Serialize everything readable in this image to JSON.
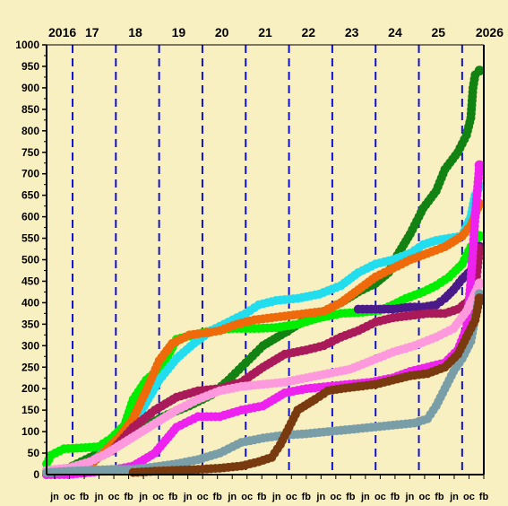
{
  "chart_data": {
    "type": "line",
    "title": "",
    "xlabel": "",
    "ylabel": "",
    "ylim": [
      0,
      1000
    ],
    "yticks": [
      0,
      50,
      100,
      150,
      200,
      250,
      300,
      350,
      400,
      450,
      500,
      550,
      600,
      650,
      700,
      750,
      800,
      850,
      900,
      950,
      1000
    ],
    "xlim": [
      2016.0,
      2026.1
    ],
    "year_labels": [
      {
        "x": 2016.0,
        "label": "2016"
      },
      {
        "x": 2017.05,
        "label": "17"
      },
      {
        "x": 2018.05,
        "label": "18"
      },
      {
        "x": 2019.05,
        "label": "19"
      },
      {
        "x": 2020.05,
        "label": "20"
      },
      {
        "x": 2021.05,
        "label": "21"
      },
      {
        "x": 2022.05,
        "label": "22"
      },
      {
        "x": 2023.05,
        "label": "23"
      },
      {
        "x": 2024.05,
        "label": "24"
      },
      {
        "x": 2025.05,
        "label": "25"
      },
      {
        "x": 2026.0,
        "label": "2026"
      }
    ],
    "year_boundaries": [
      2016.6,
      2017.6,
      2018.6,
      2019.6,
      2020.6,
      2021.6,
      2022.6,
      2023.6,
      2024.6,
      2025.6
    ],
    "month_labels": [
      "jn",
      "oc",
      "fb",
      "jn",
      "oc",
      "fb",
      "jn",
      "oc",
      "fb",
      "jn",
      "oc",
      "fb",
      "jn",
      "oc",
      "fb",
      "jn",
      "oc",
      "fb",
      "jn",
      "oc",
      "fb",
      "jn",
      "oc",
      "fb",
      "jn",
      "oc",
      "fb",
      "jn",
      "oc",
      "fb"
    ],
    "grid": false,
    "legend": "none",
    "series": [
      {
        "color": "#128212",
        "x": [
          2016.0,
          2016.3,
          2016.6,
          2017.0,
          2017.5,
          2018.0,
          2018.4,
          2018.8,
          2019.3,
          2019.8,
          2020.2,
          2020.6,
          2021.0,
          2021.5,
          2021.9,
          2022.4,
          2022.8,
          2023.2,
          2023.6,
          2023.9,
          2024.1,
          2024.4,
          2024.7,
          2025.0,
          2025.2,
          2025.5,
          2025.7,
          2025.8,
          2025.85,
          2025.9,
          2026.0
        ],
        "y": [
          5,
          5,
          20,
          40,
          65,
          95,
          120,
          140,
          160,
          185,
          220,
          260,
          300,
          330,
          355,
          380,
          400,
          425,
          445,
          470,
          510,
          560,
          620,
          660,
          710,
          750,
          790,
          830,
          900,
          930,
          940
        ]
      },
      {
        "color": "#00ee00",
        "x": [
          2016.0,
          2016.1,
          2016.4,
          2016.8,
          2017.2,
          2017.5,
          2017.8,
          2018.0,
          2018.3,
          2018.7,
          2019.0,
          2019.4,
          2019.8,
          2020.3,
          2020.8,
          2021.3,
          2021.8,
          2022.3,
          2022.8,
          2023.3,
          2023.7,
          2024.0,
          2024.3,
          2024.7,
          2025.0,
          2025.3,
          2025.6,
          2025.8,
          2026.0
        ],
        "y": [
          25,
          45,
          60,
          62,
          65,
          85,
          115,
          175,
          220,
          255,
          315,
          325,
          335,
          340,
          340,
          342,
          350,
          365,
          375,
          378,
          382,
          395,
          410,
          425,
          440,
          460,
          490,
          530,
          555
        ]
      },
      {
        "color": "#22ddee",
        "x": [
          2016.0,
          2016.5,
          2017.0,
          2017.4,
          2017.8,
          2018.2,
          2018.6,
          2019.0,
          2019.4,
          2019.8,
          2020.2,
          2020.6,
          2020.9,
          2021.3,
          2021.8,
          2022.3,
          2022.8,
          2023.2,
          2023.6,
          2024.0,
          2024.4,
          2024.7,
          2025.0,
          2025.3,
          2025.6,
          2025.8,
          2025.9,
          2026.0
        ],
        "y": [
          10,
          15,
          25,
          60,
          100,
          150,
          220,
          270,
          305,
          335,
          355,
          375,
          395,
          405,
          410,
          420,
          440,
          470,
          490,
          500,
          515,
          535,
          545,
          550,
          555,
          600,
          650,
          670
        ]
      },
      {
        "color": "#ee6a0a",
        "x": [
          2016.0,
          2016.5,
          2017.0,
          2017.4,
          2017.7,
          2018.0,
          2018.3,
          2018.6,
          2018.9,
          2019.3,
          2019.7,
          2020.0,
          2020.4,
          2020.8,
          2021.2,
          2021.6,
          2022.0,
          2022.4,
          2022.8,
          2023.2,
          2023.6,
          2024.0,
          2024.4,
          2024.8,
          2025.2,
          2025.6,
          2025.8,
          2026.0
        ],
        "y": [
          0,
          5,
          20,
          60,
          90,
          130,
          195,
          265,
          305,
          325,
          330,
          335,
          350,
          360,
          365,
          370,
          375,
          380,
          400,
          430,
          460,
          480,
          500,
          515,
          530,
          555,
          580,
          630
        ]
      },
      {
        "color": "#4a1a88",
        "x": [
          2023.2,
          2023.6,
          2024.0,
          2024.4,
          2024.7,
          2025.0,
          2025.2,
          2025.4,
          2025.6,
          2025.8,
          2026.0
        ],
        "y": [
          385,
          385,
          385,
          390,
          390,
          395,
          410,
          430,
          455,
          475,
          530
        ]
      },
      {
        "color": "#aa1a5a",
        "x": [
          2016.0,
          2016.5,
          2017.0,
          2017.5,
          2018.0,
          2018.5,
          2019.0,
          2019.5,
          2020.0,
          2020.5,
          2021.0,
          2021.5,
          2022.0,
          2022.4,
          2022.8,
          2023.2,
          2023.6,
          2024.0,
          2024.4,
          2024.8,
          2025.2,
          2025.5,
          2025.7,
          2025.9,
          2026.0
        ],
        "y": [
          0,
          10,
          30,
          55,
          110,
          150,
          180,
          195,
          200,
          215,
          250,
          280,
          290,
          300,
          320,
          335,
          355,
          365,
          370,
          375,
          375,
          385,
          400,
          430,
          525
        ]
      },
      {
        "color": "#ee22ee",
        "x": [
          2016.0,
          2016.5,
          2017.0,
          2017.5,
          2018.0,
          2018.5,
          2019.0,
          2019.5,
          2020.0,
          2020.5,
          2021.0,
          2021.5,
          2022.0,
          2022.5,
          2023.0,
          2023.5,
          2024.0,
          2024.4,
          2024.8,
          2025.2,
          2025.5,
          2025.7,
          2025.8,
          2025.9,
          2026.0
        ],
        "y": [
          0,
          0,
          5,
          10,
          20,
          50,
          110,
          135,
          135,
          150,
          160,
          190,
          200,
          205,
          210,
          215,
          225,
          240,
          250,
          260,
          290,
          340,
          450,
          600,
          720
        ]
      },
      {
        "color": "#ff99dd",
        "x": [
          2016.0,
          2016.5,
          2017.0,
          2017.4,
          2017.8,
          2018.2,
          2018.6,
          2019.0,
          2019.5,
          2020.0,
          2020.5,
          2021.0,
          2021.5,
          2022.0,
          2022.5,
          2023.0,
          2023.5,
          2024.0,
          2024.5,
          2025.0,
          2025.4,
          2025.7,
          2026.0
        ],
        "y": [
          10,
          15,
          30,
          50,
          75,
          100,
          125,
          150,
          175,
          195,
          205,
          210,
          215,
          225,
          235,
          245,
          265,
          285,
          300,
          320,
          340,
          380,
          445
        ]
      },
      {
        "color": "#7a9ea8",
        "x": [
          2016.0,
          2016.5,
          2017.0,
          2017.5,
          2018.0,
          2018.5,
          2019.0,
          2019.5,
          2020.0,
          2020.5,
          2021.0,
          2021.5,
          2022.0,
          2022.5,
          2023.0,
          2023.5,
          2024.0,
          2024.5,
          2024.8,
          2025.0,
          2025.2,
          2025.4,
          2025.6,
          2025.8,
          2026.0
        ],
        "y": [
          5,
          8,
          10,
          12,
          12,
          18,
          25,
          35,
          50,
          75,
          85,
          92,
          95,
          100,
          105,
          110,
          115,
          120,
          130,
          160,
          200,
          240,
          270,
          310,
          420
        ]
      },
      {
        "color": "#7a3a10",
        "x": [
          2018.0,
          2018.5,
          2019.0,
          2019.5,
          2020.0,
          2020.5,
          2020.9,
          2021.2,
          2021.4,
          2021.6,
          2021.8,
          2022.2,
          2022.5,
          2022.8,
          2023.2,
          2023.6,
          2024.0,
          2024.4,
          2024.8,
          2025.2,
          2025.5,
          2025.7,
          2025.9,
          2026.0
        ],
        "y": [
          5,
          8,
          10,
          12,
          15,
          20,
          30,
          40,
          70,
          110,
          150,
          175,
          195,
          200,
          205,
          210,
          220,
          230,
          235,
          250,
          280,
          320,
          360,
          410
        ]
      }
    ]
  }
}
